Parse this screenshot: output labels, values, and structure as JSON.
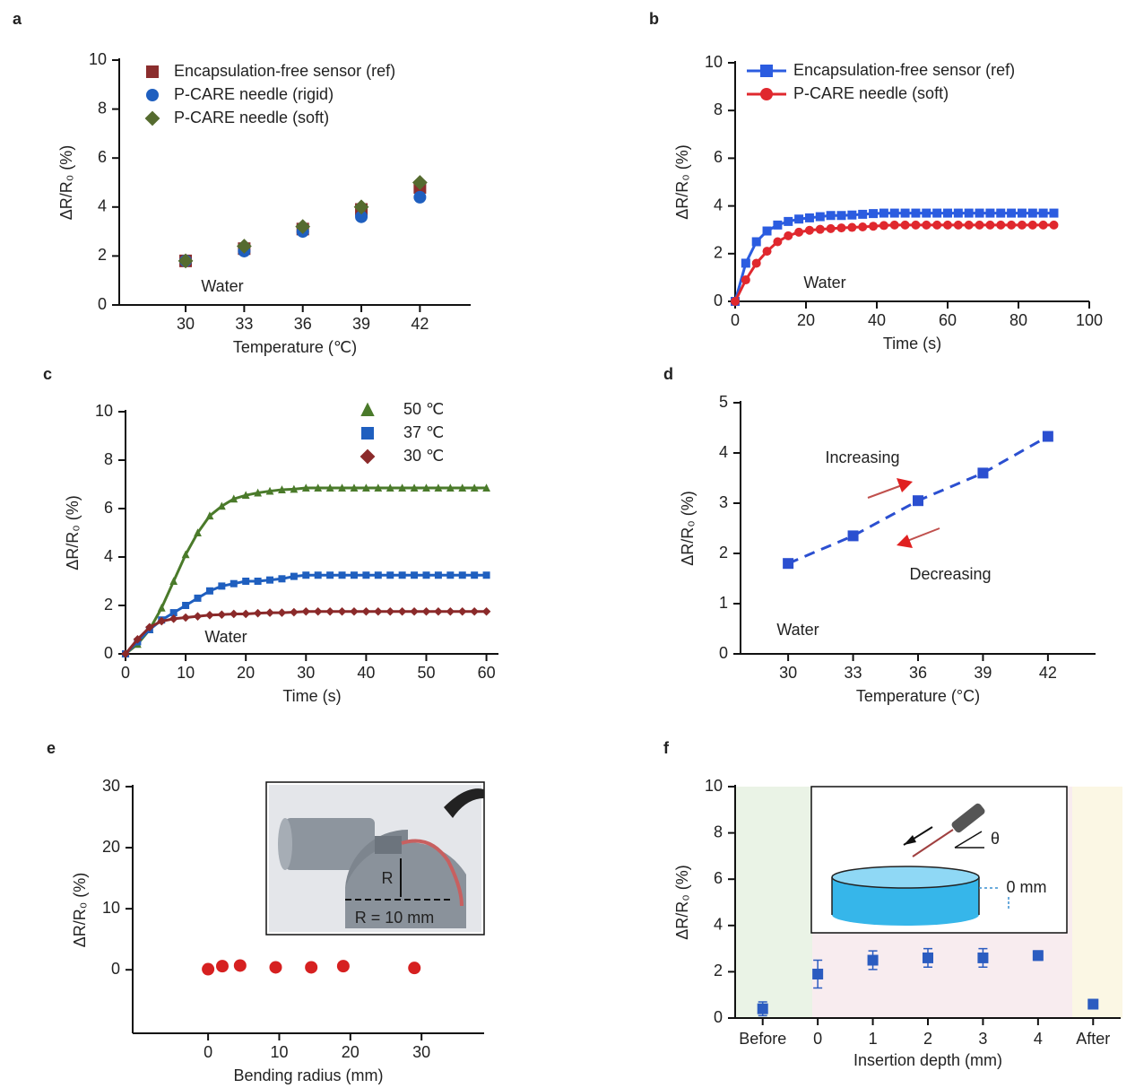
{
  "chart_data": [
    {
      "type": "scatter",
      "panel": "a",
      "xlabel": "Temperature (℃)",
      "ylabel": "ΔR/R₀ (%)",
      "x": [
        30,
        33,
        36,
        39,
        42
      ],
      "xlim": [
        26.6,
        44.6
      ],
      "xticks": [
        30,
        33,
        36,
        39,
        42
      ],
      "ylim": [
        0,
        10
      ],
      "yticks": [
        0,
        2,
        4,
        6,
        8,
        10
      ],
      "legend": "upper left",
      "annotations": [
        "Water"
      ],
      "series": [
        {
          "name": "Encapsulation-free sensor (ref)",
          "color": "#8b2d2d",
          "marker": "square",
          "values": [
            1.8,
            2.3,
            3.1,
            3.9,
            4.8
          ]
        },
        {
          "name": "P-CARE needle (rigid)",
          "color": "#1f5fbf",
          "marker": "circle",
          "values": [
            1.8,
            2.2,
            3.0,
            3.6,
            4.4
          ]
        },
        {
          "name": "P-CARE needle (soft)",
          "color": "#556b2f",
          "marker": "diamond",
          "values": [
            1.8,
            2.4,
            3.2,
            4.0,
            5.0
          ]
        }
      ]
    },
    {
      "type": "line",
      "panel": "b",
      "xlabel": "Time (s)",
      "ylabel": "ΔR/R₀ (%)",
      "x": [
        0,
        3,
        6,
        9,
        12,
        15,
        18,
        21,
        24,
        27,
        30,
        33,
        36,
        39,
        42,
        45,
        48,
        51,
        54,
        57,
        60,
        63,
        66,
        69,
        72,
        75,
        78,
        81,
        84,
        87,
        90
      ],
      "xlim": [
        0,
        100
      ],
      "xticks": [
        0,
        20,
        40,
        60,
        80,
        100
      ],
      "ylim": [
        0,
        10
      ],
      "yticks": [
        0,
        2,
        4,
        6,
        8,
        10
      ],
      "legend": "upper left",
      "annotations": [
        "Water"
      ],
      "series": [
        {
          "name": "Encapsulation-free sensor (ref)",
          "color": "#2b5ce0",
          "marker": "square",
          "values": [
            0,
            1.6,
            2.5,
            2.95,
            3.2,
            3.35,
            3.45,
            3.5,
            3.55,
            3.6,
            3.6,
            3.62,
            3.65,
            3.68,
            3.7,
            3.7,
            3.7,
            3.7,
            3.7,
            3.7,
            3.7,
            3.7,
            3.7,
            3.7,
            3.7,
            3.7,
            3.7,
            3.7,
            3.7,
            3.7,
            3.7
          ]
        },
        {
          "name": "P-CARE needle (soft)",
          "color": "#e0282e",
          "marker": "circle",
          "values": [
            0,
            0.9,
            1.6,
            2.1,
            2.5,
            2.75,
            2.9,
            2.98,
            3.02,
            3.05,
            3.08,
            3.1,
            3.12,
            3.15,
            3.18,
            3.2,
            3.2,
            3.2,
            3.2,
            3.2,
            3.2,
            3.2,
            3.2,
            3.2,
            3.2,
            3.2,
            3.2,
            3.2,
            3.2,
            3.2,
            3.2
          ]
        }
      ]
    },
    {
      "type": "line",
      "panel": "c",
      "xlabel": "Time (s)",
      "ylabel": "ΔR/R₀ (%)",
      "x": [
        0,
        2,
        4,
        6,
        8,
        10,
        12,
        14,
        16,
        18,
        20,
        22,
        24,
        26,
        28,
        30,
        32,
        34,
        36,
        38,
        40,
        42,
        44,
        46,
        48,
        50,
        52,
        54,
        56,
        58,
        60
      ],
      "xlim": [
        0,
        62
      ],
      "xticks": [
        0,
        10,
        20,
        30,
        40,
        50,
        60
      ],
      "ylim": [
        0,
        10
      ],
      "yticks": [
        0,
        2,
        4,
        6,
        8,
        10
      ],
      "legend": "upper right",
      "annotations": [
        "Water"
      ],
      "series": [
        {
          "name": "50 ℃",
          "color": "#4a7a2a",
          "marker": "triangle",
          "values": [
            0,
            0.4,
            1.0,
            1.9,
            3.0,
            4.1,
            5.0,
            5.7,
            6.1,
            6.4,
            6.55,
            6.65,
            6.72,
            6.78,
            6.8,
            6.85,
            6.85,
            6.85,
            6.85,
            6.85,
            6.85,
            6.85,
            6.85,
            6.85,
            6.85,
            6.85,
            6.85,
            6.85,
            6.85,
            6.85,
            6.85
          ]
        },
        {
          "name": "37 ℃",
          "color": "#1f5fbf",
          "marker": "square",
          "values": [
            0,
            0.5,
            1.0,
            1.4,
            1.7,
            2.0,
            2.3,
            2.6,
            2.8,
            2.9,
            3.0,
            3.0,
            3.05,
            3.1,
            3.2,
            3.25,
            3.25,
            3.25,
            3.25,
            3.25,
            3.25,
            3.25,
            3.25,
            3.25,
            3.25,
            3.25,
            3.25,
            3.25,
            3.25,
            3.25,
            3.25
          ]
        },
        {
          "name": "30 ℃",
          "color": "#8b2a2a",
          "marker": "diamond",
          "values": [
            0,
            0.6,
            1.1,
            1.35,
            1.45,
            1.5,
            1.55,
            1.6,
            1.62,
            1.65,
            1.65,
            1.68,
            1.7,
            1.7,
            1.72,
            1.75,
            1.75,
            1.75,
            1.75,
            1.75,
            1.75,
            1.75,
            1.75,
            1.75,
            1.75,
            1.75,
            1.75,
            1.75,
            1.75,
            1.75,
            1.75
          ]
        }
      ]
    },
    {
      "type": "line",
      "panel": "d",
      "xlabel": "Temperature (°C)",
      "ylabel": "ΔR/R₀ (%)",
      "x": [
        30,
        33,
        36,
        39,
        42
      ],
      "xlim": [
        27.8,
        44.2
      ],
      "xticks": [
        30,
        33,
        36,
        39,
        42
      ],
      "ylim": [
        0,
        5
      ],
      "yticks": [
        0,
        1,
        2,
        3,
        4,
        5
      ],
      "linestyle": "dashed",
      "annotations": [
        "Increasing",
        "Decreasing",
        "Water"
      ],
      "series": [
        {
          "color": "#2b4fd0",
          "marker": "square",
          "values": [
            1.8,
            2.35,
            3.05,
            3.6,
            4.33
          ]
        }
      ]
    },
    {
      "type": "scatter",
      "panel": "e",
      "xlabel": "Bending radius (mm)",
      "ylabel": "ΔR/R₀ (%)",
      "x": [
        0,
        2,
        4.5,
        9.5,
        14.5,
        19,
        29
      ],
      "xlim": [
        -10.6,
        38.8
      ],
      "xticks": [
        0,
        10,
        20,
        30
      ],
      "ylim": [
        -10.4,
        30
      ],
      "yticks": [
        0,
        10,
        20,
        30
      ],
      "inset_labels": [
        "R",
        "R = 10 mm"
      ],
      "series": [
        {
          "color": "#d62020",
          "marker": "circle",
          "values": [
            0.1,
            0.6,
            0.7,
            0.4,
            0.4,
            0.6,
            0.3
          ]
        }
      ]
    },
    {
      "type": "scatter",
      "panel": "f",
      "xlabel": "Insertion depth (mm)",
      "ylabel": "ΔR/R₀ (%)",
      "categories": [
        "Before",
        "0",
        "1",
        "2",
        "3",
        "4",
        "After"
      ],
      "ylim": [
        0,
        10
      ],
      "yticks": [
        0,
        2,
        4,
        6,
        8,
        10
      ],
      "inset_labels": [
        "θ",
        "0 mm"
      ],
      "series": [
        {
          "color": "#2b5cc0",
          "marker": "square",
          "values": [
            0.4,
            1.9,
            2.5,
            2.6,
            2.6,
            2.7,
            0.6
          ],
          "errors": [
            0.3,
            0.6,
            0.4,
            0.4,
            0.4,
            0.2,
            0.2
          ]
        }
      ]
    }
  ]
}
